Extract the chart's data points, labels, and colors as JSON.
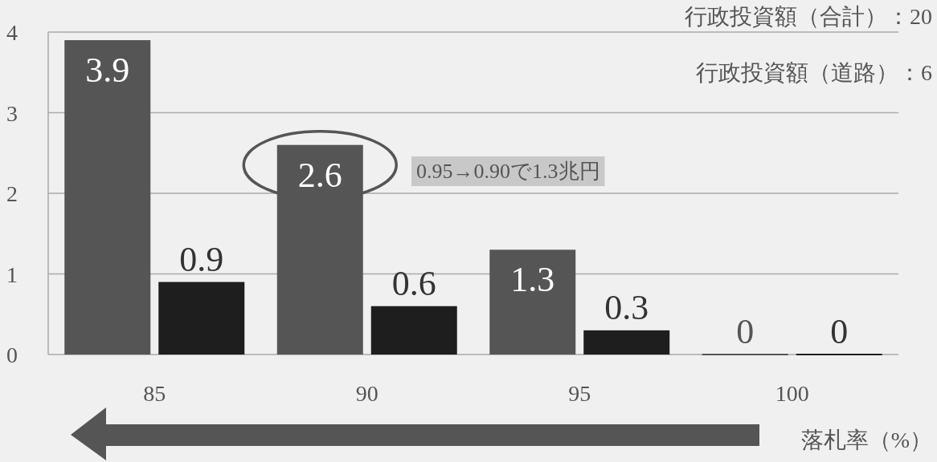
{
  "chart_data": {
    "type": "bar",
    "categories": [
      "85",
      "90",
      "95",
      "100"
    ],
    "series": [
      {
        "color": "#555555",
        "values": [
          3.9,
          2.6,
          1.3,
          0
        ]
      },
      {
        "color": "#1e1e1e",
        "values": [
          0.9,
          0.6,
          0.3,
          0
        ]
      }
    ],
    "xlabel": "落札率（%）",
    "ylim": [
      0,
      4
    ],
    "yticks": [
      0,
      1,
      2,
      3,
      4
    ],
    "grid": "y",
    "data_labels": true,
    "annotations": [
      "0.95→0.90で1.3兆円",
      "行政投資額（合計）：20",
      "行政投資額（道路）：6"
    ]
  }
}
